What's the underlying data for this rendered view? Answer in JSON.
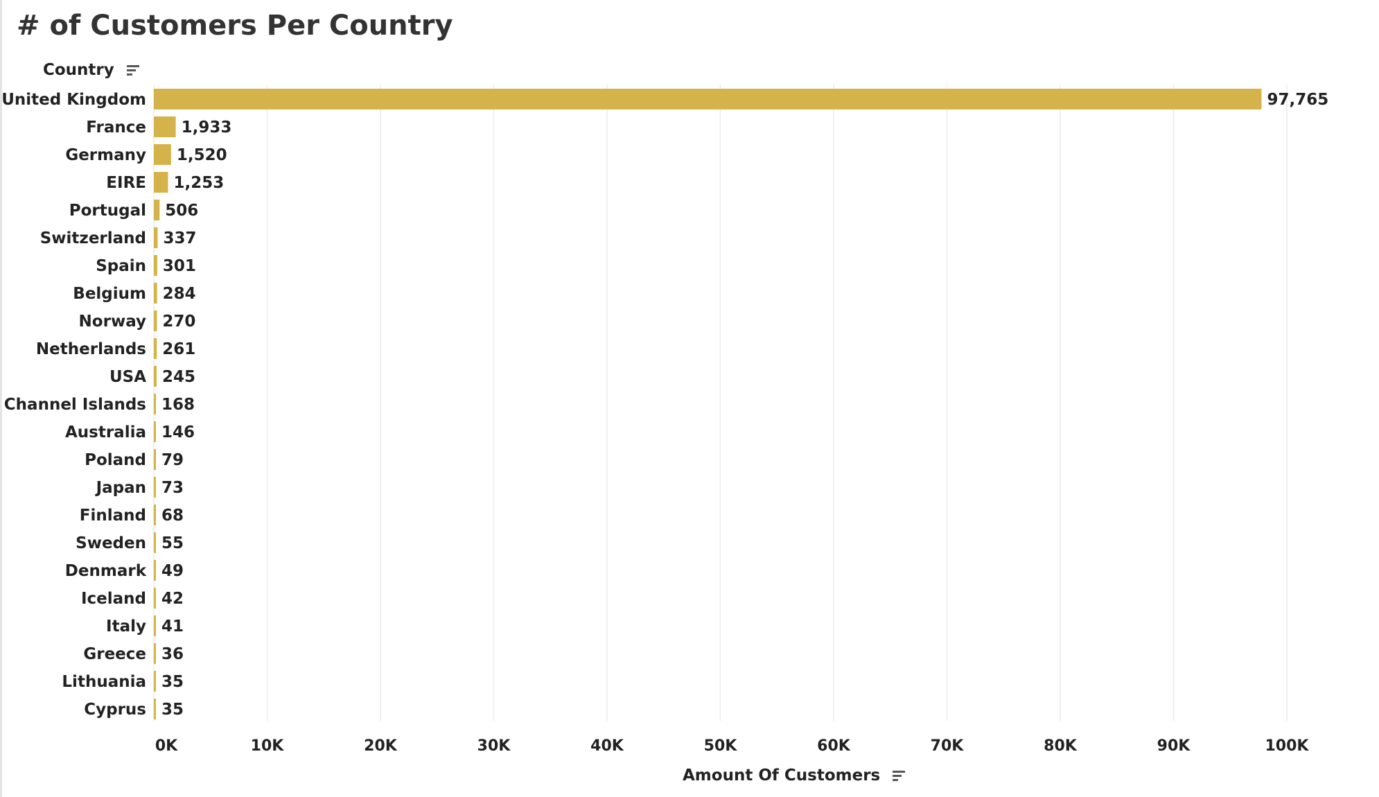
{
  "chart_data": {
    "type": "bar",
    "orientation": "horizontal",
    "title": "# of Customers Per Country",
    "ylabel": "Country",
    "xlabel": "Amount Of Customers",
    "categories": [
      "United Kingdom",
      "France",
      "Germany",
      "EIRE",
      "Portugal",
      "Switzerland",
      "Spain",
      "Belgium",
      "Norway",
      "Netherlands",
      "USA",
      "Channel Islands",
      "Australia",
      "Poland",
      "Japan",
      "Finland",
      "Sweden",
      "Denmark",
      "Iceland",
      "Italy",
      "Greece",
      "Lithuania",
      "Cyprus"
    ],
    "values": [
      97765,
      1933,
      1520,
      1253,
      506,
      337,
      301,
      284,
      270,
      261,
      245,
      168,
      146,
      79,
      73,
      68,
      55,
      49,
      42,
      41,
      36,
      35,
      35
    ],
    "value_labels": [
      "97,765",
      "1,933",
      "1,520",
      "1,253",
      "506",
      "337",
      "301",
      "284",
      "270",
      "261",
      "245",
      "168",
      "146",
      "79",
      "73",
      "68",
      "55",
      "49",
      "42",
      "41",
      "36",
      "35",
      "35"
    ],
    "xlim": [
      0,
      106000
    ],
    "xticks": [
      0,
      10000,
      20000,
      30000,
      40000,
      50000,
      60000,
      70000,
      80000,
      90000,
      100000
    ],
    "xtick_labels": [
      "0K",
      "10K",
      "20K",
      "30K",
      "40K",
      "50K",
      "60K",
      "70K",
      "80K",
      "90K",
      "100K"
    ],
    "grid": "vertical",
    "bar_color": "#D4B44A",
    "grid_color": "#ececec"
  },
  "icons": {
    "country_sort": "sort-icon",
    "amount_sort": "sort-icon"
  }
}
